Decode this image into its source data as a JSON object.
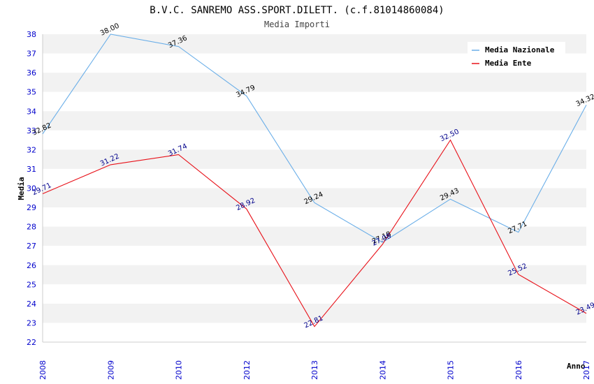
{
  "chart_data": {
    "type": "line",
    "title": "B.V.C. SANREMO ASS.SPORT.DILETT. (c.f.81014860084)",
    "subtitle": "Media Importi",
    "xlabel": "Anno",
    "ylabel": "Media",
    "categories": [
      "2008",
      "2009",
      "2010",
      "2012",
      "2013",
      "2014",
      "2015",
      "2016",
      "2017"
    ],
    "ylim": [
      22,
      38
    ],
    "yticks": [
      "22",
      "23",
      "24",
      "25",
      "26",
      "27",
      "28",
      "29",
      "30",
      "31",
      "32",
      "33",
      "34",
      "35",
      "36",
      "37",
      "38"
    ],
    "grid": "horizontal alternating bands",
    "legend_position": "top-right",
    "series": [
      {
        "name": "Media Nazionale",
        "color": "#6aaee8",
        "label_color": "#000000",
        "values": [
          32.82,
          38.0,
          37.36,
          34.79,
          29.24,
          27.18,
          29.43,
          27.71,
          34.32
        ],
        "labels": [
          "32.82",
          "38.00",
          "37.36",
          "34.79",
          "29.24",
          "27.18",
          "29.43",
          "27.71",
          "34.32"
        ]
      },
      {
        "name": "Media Ente",
        "color": "#e8121a",
        "label_color": "#00008b",
        "values": [
          29.71,
          31.22,
          31.74,
          28.92,
          22.81,
          27.08,
          32.5,
          25.52,
          23.49
        ],
        "labels": [
          "29.71",
          "31.22",
          "31.74",
          "28.92",
          "22.81",
          "27.08",
          "32.50",
          "25.52",
          "23.49"
        ]
      }
    ]
  }
}
